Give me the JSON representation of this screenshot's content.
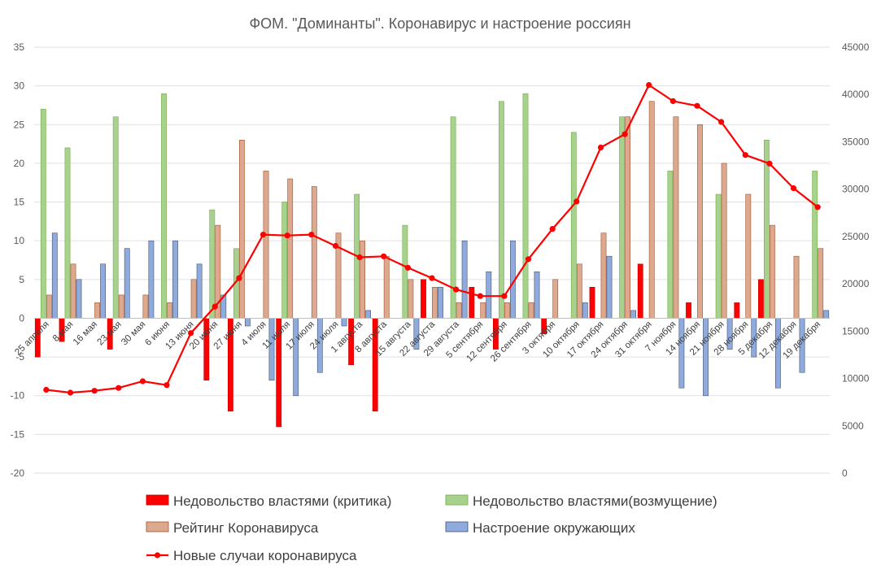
{
  "chart_data": {
    "type": "bar+line",
    "title": "ФОМ. \"Доминанты\". Коронавирус и настроение россиян",
    "categories": [
      "25 апреля",
      "8 мая",
      "16 мая",
      "23 мая",
      "30 мая",
      "6 июня",
      "13 июня",
      "20 июня",
      "27 июня",
      "4 июля",
      "11 июля",
      "17 июля",
      "24 июля",
      "1 августа",
      "8 августа",
      "15 августа",
      "22 августа",
      "29 августа",
      "5 сентября",
      "12 сентября",
      "26 сентября",
      "3 октября",
      "10 октября",
      "17 октября",
      "24 октября",
      "31 октября",
      "7 ноября",
      "14 ноября",
      "21 ноября",
      "28 ноября",
      "5 декабря",
      "12 декабря",
      "19 декабря"
    ],
    "y_left": {
      "min": -20,
      "max": 35,
      "step": 5,
      "tick_labels": [
        "-20",
        "-15",
        "-10",
        "-5",
        "0",
        "5",
        "10",
        "15",
        "20",
        "25",
        "30",
        "35"
      ]
    },
    "y_right": {
      "min": 0,
      "max": 45000,
      "step": 5000,
      "tick_labels": [
        "0",
        "5000",
        "10000",
        "15000",
        "20000",
        "25000",
        "30000",
        "35000",
        "40000",
        "45000"
      ]
    },
    "series": [
      {
        "name": "Недовольство властями (критика)",
        "type": "bar",
        "axis": "left",
        "color": "#ff0000",
        "stroke": "#c00000",
        "values": [
          -5,
          -3,
          null,
          -4,
          null,
          null,
          null,
          -8,
          -12,
          null,
          -14,
          null,
          null,
          -6,
          -12,
          null,
          5,
          null,
          4,
          -4,
          null,
          -2,
          null,
          4,
          null,
          7,
          null,
          2,
          null,
          2,
          5,
          null,
          null
        ]
      },
      {
        "name": "Недовольство властями(возмущение)",
        "type": "bar",
        "axis": "left",
        "color": "#a9d18e",
        "stroke": "#70ad47",
        "values": [
          27,
          22,
          null,
          26,
          null,
          29,
          null,
          14,
          9,
          null,
          15,
          null,
          null,
          16,
          null,
          12,
          null,
          26,
          null,
          28,
          29,
          null,
          24,
          null,
          26,
          null,
          19,
          null,
          16,
          null,
          23,
          null,
          19
        ]
      },
      {
        "name": "Рейтинг Коронавируса",
        "type": "bar",
        "axis": "left",
        "color": "#dca98f",
        "stroke": "#a0522d",
        "values": [
          3,
          7,
          2,
          3,
          3,
          2,
          5,
          12,
          23,
          19,
          18,
          17,
          11,
          10,
          8,
          5,
          4,
          2,
          2,
          2,
          2,
          5,
          7,
          11,
          26,
          28,
          26,
          25,
          20,
          16,
          12,
          8,
          9
        ]
      },
      {
        "name": "Настроение окружающих",
        "type": "bar",
        "axis": "left",
        "color": "#8faadc",
        "stroke": "#44546a",
        "values": [
          11,
          5,
          7,
          9,
          10,
          10,
          7,
          3,
          -1,
          -8,
          -10,
          -7,
          -1,
          1,
          null,
          -4,
          4,
          10,
          6,
          10,
          6,
          null,
          2,
          8,
          1,
          null,
          -9,
          -10,
          -4,
          -5,
          -9,
          -7,
          1
        ]
      },
      {
        "name": "Новые случаи коронавируса",
        "type": "line",
        "axis": "right",
        "color": "#ff0000",
        "values": [
          8800,
          8500,
          8700,
          9000,
          9700,
          9300,
          14800,
          17600,
          20600,
          25200,
          25100,
          25200,
          24000,
          22800,
          22900,
          21700,
          20600,
          19400,
          18700,
          18700,
          22600,
          25800,
          28700,
          34400,
          35800,
          41000,
          39300,
          38800,
          37100,
          33600,
          32700,
          30100,
          28100
        ]
      }
    ],
    "legend": {
      "placement": "bottom"
    }
  }
}
